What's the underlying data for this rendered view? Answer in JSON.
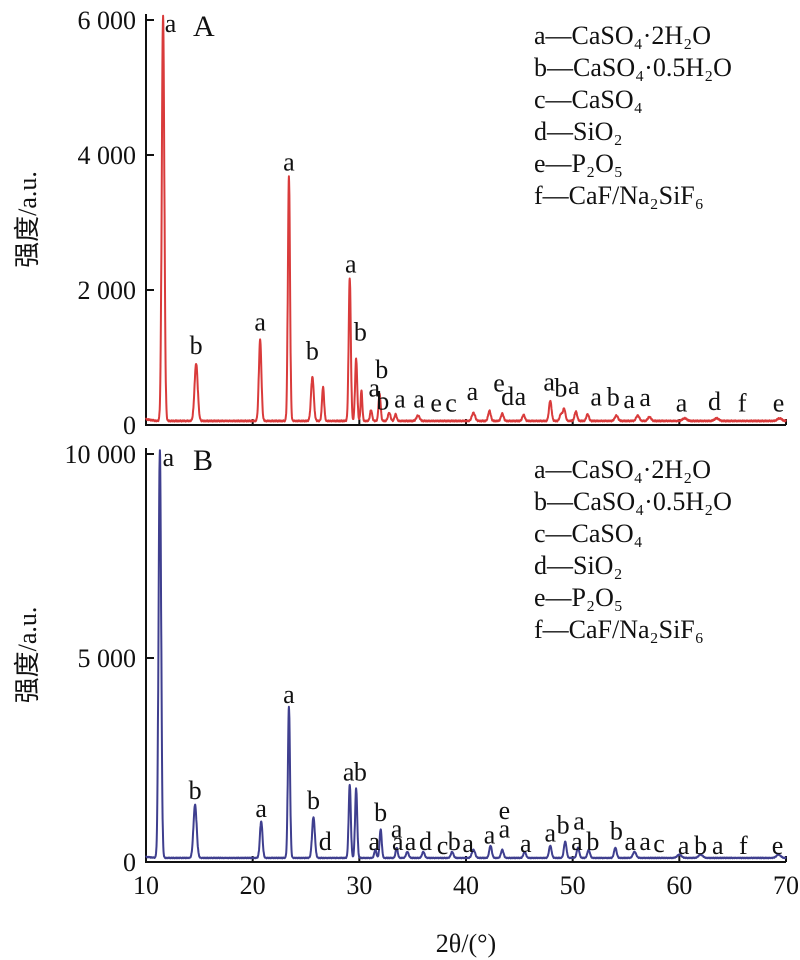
{
  "chart_data": [
    {
      "type": "line",
      "panel_label": "A",
      "color": "#d93b3b",
      "xlim": [
        10,
        70
      ],
      "ylim": [
        0,
        6000
      ],
      "yticks": [
        0,
        2000,
        4000,
        6000
      ],
      "ytick_labels": [
        "0",
        "2 000",
        "4 000",
        "6 000"
      ],
      "ylabel": "强度/a.u.",
      "baseline": 60,
      "peaks": [
        {
          "x": 11.6,
          "y": 6000,
          "w": 0.12
        },
        {
          "x": 14.7,
          "y": 850,
          "w": 0.15
        },
        {
          "x": 20.7,
          "y": 1200,
          "w": 0.12
        },
        {
          "x": 23.4,
          "y": 3620,
          "w": 0.1
        },
        {
          "x": 25.6,
          "y": 650,
          "w": 0.13
        },
        {
          "x": 26.6,
          "y": 500,
          "w": 0.1
        },
        {
          "x": 29.1,
          "y": 2120,
          "w": 0.1
        },
        {
          "x": 29.7,
          "y": 920,
          "w": 0.1
        },
        {
          "x": 30.2,
          "y": 450,
          "w": 0.08
        },
        {
          "x": 31.1,
          "y": 160,
          "w": 0.1
        },
        {
          "x": 31.9,
          "y": 400,
          "w": 0.1
        },
        {
          "x": 32.8,
          "y": 120,
          "w": 0.12
        },
        {
          "x": 33.4,
          "y": 100,
          "w": 0.1
        },
        {
          "x": 35.5,
          "y": 80,
          "w": 0.15
        },
        {
          "x": 40.7,
          "y": 120,
          "w": 0.15
        },
        {
          "x": 42.2,
          "y": 150,
          "w": 0.12
        },
        {
          "x": 43.4,
          "y": 110,
          "w": 0.12
        },
        {
          "x": 45.4,
          "y": 90,
          "w": 0.12
        },
        {
          "x": 47.9,
          "y": 300,
          "w": 0.12
        },
        {
          "x": 48.9,
          "y": 100,
          "w": 0.12
        },
        {
          "x": 49.2,
          "y": 180,
          "w": 0.12
        },
        {
          "x": 50.3,
          "y": 140,
          "w": 0.12
        },
        {
          "x": 51.4,
          "y": 100,
          "w": 0.12
        },
        {
          "x": 54.1,
          "y": 80,
          "w": 0.15
        },
        {
          "x": 56.1,
          "y": 80,
          "w": 0.15
        },
        {
          "x": 57.2,
          "y": 60,
          "w": 0.15
        },
        {
          "x": 60.5,
          "y": 40,
          "w": 0.2
        },
        {
          "x": 63.5,
          "y": 40,
          "w": 0.2
        },
        {
          "x": 69.4,
          "y": 40,
          "w": 0.2
        }
      ],
      "annotations": [
        {
          "text": "a",
          "x": 12.3,
          "y": 5820
        },
        {
          "text": "b",
          "x": 14.7,
          "y": 1050
        },
        {
          "text": "a",
          "x": 20.7,
          "y": 1400
        },
        {
          "text": "a",
          "x": 23.4,
          "y": 3770
        },
        {
          "text": "b",
          "x": 25.6,
          "y": 970
        },
        {
          "text": "a",
          "x": 29.2,
          "y": 2260
        },
        {
          "text": "b",
          "x": 30.1,
          "y": 1250
        },
        {
          "text": "b",
          "x": 32.1,
          "y": 700
        },
        {
          "text": "a",
          "x": 31.4,
          "y": 420
        },
        {
          "text": "b",
          "x": 32.2,
          "y": 230
        },
        {
          "text": "a",
          "x": 33.8,
          "y": 260
        },
        {
          "text": "a",
          "x": 35.6,
          "y": 260
        },
        {
          "text": "e",
          "x": 37.2,
          "y": 200
        },
        {
          "text": "c",
          "x": 38.6,
          "y": 200
        },
        {
          "text": "a",
          "x": 40.6,
          "y": 370
        },
        {
          "text": "e",
          "x": 43.1,
          "y": 500
        },
        {
          "text": "d",
          "x": 43.9,
          "y": 300
        },
        {
          "text": "a",
          "x": 45.1,
          "y": 300
        },
        {
          "text": "a",
          "x": 47.8,
          "y": 510
        },
        {
          "text": "b",
          "x": 48.9,
          "y": 420
        },
        {
          "text": "a",
          "x": 50.1,
          "y": 460
        },
        {
          "text": "a",
          "x": 52.2,
          "y": 290
        },
        {
          "text": "b",
          "x": 53.8,
          "y": 290
        },
        {
          "text": "a",
          "x": 55.3,
          "y": 250
        },
        {
          "text": "a",
          "x": 56.8,
          "y": 280
        },
        {
          "text": "a",
          "x": 60.2,
          "y": 200
        },
        {
          "text": "d",
          "x": 63.3,
          "y": 220
        },
        {
          "text": "f",
          "x": 65.9,
          "y": 200
        },
        {
          "text": "e",
          "x": 69.3,
          "y": 200
        }
      ],
      "legend": [
        "a—CaSO₄·2H₂O",
        "b—CaSO₄·0.5H₂O",
        "c—CaSO₄",
        "d—SiO₂",
        "e—P₂O₅",
        "f—CaF/Na₂SiF₆"
      ]
    },
    {
      "type": "line",
      "panel_label": "B",
      "color": "#3f3f8f",
      "xlim": [
        10,
        70
      ],
      "ylim": [
        0,
        10000
      ],
      "yticks": [
        0,
        5000,
        10000
      ],
      "ytick_labels": [
        "0",
        "5 000",
        "10 000"
      ],
      "ylabel": "强度/a.u.",
      "xticks": [
        10,
        20,
        30,
        40,
        50,
        60,
        70
      ],
      "xtick_labels": [
        "10",
        "20",
        "30",
        "40",
        "50",
        "60",
        "70"
      ],
      "xlabel": "2θ/(°)",
      "baseline": 100,
      "peaks": [
        {
          "x": 11.3,
          "y": 10000,
          "w": 0.12
        },
        {
          "x": 14.6,
          "y": 1300,
          "w": 0.15
        },
        {
          "x": 20.8,
          "y": 900,
          "w": 0.12
        },
        {
          "x": 23.4,
          "y": 3700,
          "w": 0.1
        },
        {
          "x": 25.7,
          "y": 1000,
          "w": 0.13
        },
        {
          "x": 29.1,
          "y": 1800,
          "w": 0.1
        },
        {
          "x": 29.7,
          "y": 1700,
          "w": 0.1
        },
        {
          "x": 31.5,
          "y": 200,
          "w": 0.1
        },
        {
          "x": 32.0,
          "y": 700,
          "w": 0.1
        },
        {
          "x": 33.5,
          "y": 250,
          "w": 0.1
        },
        {
          "x": 34.5,
          "y": 150,
          "w": 0.12
        },
        {
          "x": 36.0,
          "y": 150,
          "w": 0.12
        },
        {
          "x": 38.7,
          "y": 150,
          "w": 0.12
        },
        {
          "x": 40.7,
          "y": 200,
          "w": 0.15
        },
        {
          "x": 42.3,
          "y": 300,
          "w": 0.12
        },
        {
          "x": 43.4,
          "y": 200,
          "w": 0.12
        },
        {
          "x": 45.5,
          "y": 150,
          "w": 0.12
        },
        {
          "x": 47.9,
          "y": 300,
          "w": 0.12
        },
        {
          "x": 49.3,
          "y": 400,
          "w": 0.12
        },
        {
          "x": 50.5,
          "y": 250,
          "w": 0.12
        },
        {
          "x": 51.5,
          "y": 200,
          "w": 0.12
        },
        {
          "x": 54.0,
          "y": 250,
          "w": 0.12
        },
        {
          "x": 55.8,
          "y": 150,
          "w": 0.15
        },
        {
          "x": 60.0,
          "y": 80,
          "w": 0.2
        },
        {
          "x": 62.0,
          "y": 80,
          "w": 0.2
        },
        {
          "x": 69.3,
          "y": 80,
          "w": 0.2
        }
      ],
      "annotations": [
        {
          "text": "a",
          "x": 12.1,
          "y": 9700
        },
        {
          "text": "b",
          "x": 14.6,
          "y": 1550
        },
        {
          "text": "a",
          "x": 20.8,
          "y": 1100
        },
        {
          "text": "a",
          "x": 23.4,
          "y": 3900
        },
        {
          "text": "b",
          "x": 25.7,
          "y": 1300
        },
        {
          "text": "d",
          "x": 26.8,
          "y": 300
        },
        {
          "text": "a",
          "x": 29.0,
          "y": 2000
        },
        {
          "text": "b",
          "x": 30.1,
          "y": 2000
        },
        {
          "text": "b",
          "x": 32.0,
          "y": 1000
        },
        {
          "text": "a",
          "x": 33.5,
          "y": 600
        },
        {
          "text": "a",
          "x": 31.4,
          "y": 300
        },
        {
          "text": "a",
          "x": 33.6,
          "y": 300
        },
        {
          "text": "a",
          "x": 34.8,
          "y": 300
        },
        {
          "text": "d",
          "x": 36.2,
          "y": 300
        },
        {
          "text": "c",
          "x": 37.8,
          "y": 200
        },
        {
          "text": "b",
          "x": 38.9,
          "y": 300
        },
        {
          "text": "a",
          "x": 40.2,
          "y": 250
        },
        {
          "text": "a",
          "x": 42.2,
          "y": 450
        },
        {
          "text": "a",
          "x": 43.6,
          "y": 600
        },
        {
          "text": "e",
          "x": 43.6,
          "y": 1050
        },
        {
          "text": "a",
          "x": 45.6,
          "y": 250
        },
        {
          "text": "a",
          "x": 47.9,
          "y": 500
        },
        {
          "text": "b",
          "x": 49.1,
          "y": 700
        },
        {
          "text": "a",
          "x": 50.6,
          "y": 800
        },
        {
          "text": "a",
          "x": 50.4,
          "y": 300
        },
        {
          "text": "b",
          "x": 51.9,
          "y": 300
        },
        {
          "text": "b",
          "x": 54.1,
          "y": 550
        },
        {
          "text": "a",
          "x": 55.4,
          "y": 300
        },
        {
          "text": "a",
          "x": 56.8,
          "y": 300
        },
        {
          "text": "c",
          "x": 58.1,
          "y": 250
        },
        {
          "text": "a",
          "x": 60.4,
          "y": 200
        },
        {
          "text": "b",
          "x": 62.0,
          "y": 200
        },
        {
          "text": "a",
          "x": 63.6,
          "y": 200
        },
        {
          "text": "f",
          "x": 66.0,
          "y": 200
        },
        {
          "text": "e",
          "x": 69.2,
          "y": 200
        }
      ],
      "legend": [
        "a—CaSO₄·2H₂O",
        "b—CaSO₄·0.5H₂O",
        "c—CaSO₄",
        "d—SiO₂",
        "e—P₂O₅",
        "f—CaF/Na₂SiF₆"
      ]
    }
  ]
}
